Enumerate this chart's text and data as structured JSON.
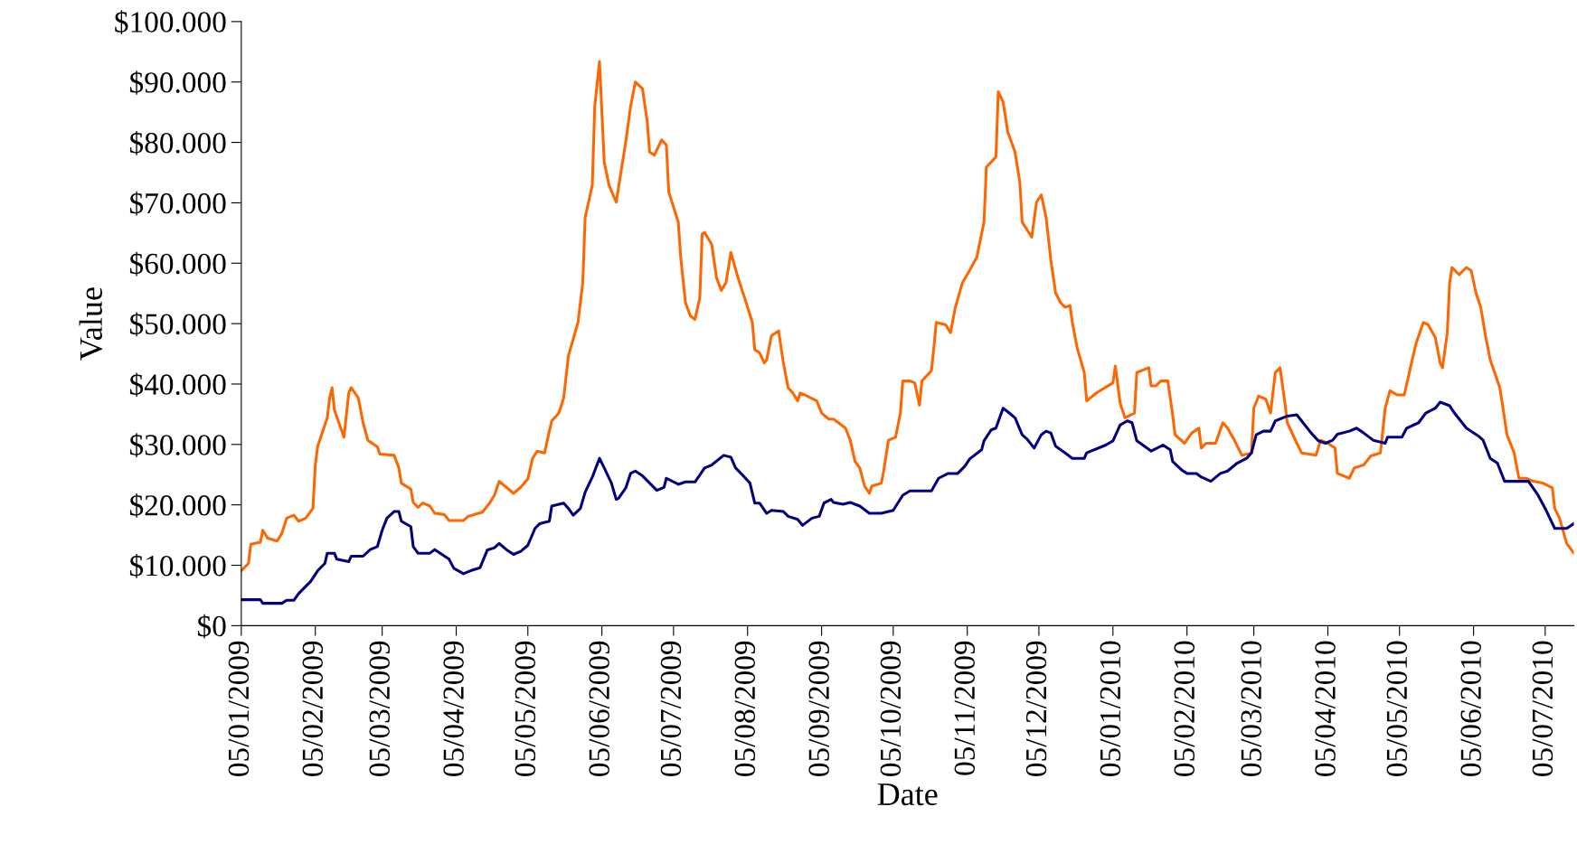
{
  "chart_data": {
    "type": "line",
    "xlabel": "Date",
    "ylabel": "Value",
    "grid": false,
    "legend": false,
    "marker": "none",
    "line_style": "solid",
    "xlim": [
      "2009-01-05",
      "2010-07-17"
    ],
    "xticks": [
      {
        "value": "2009-01-05",
        "label": "05/01/2009"
      },
      {
        "value": "2009-02-05",
        "label": "05/02/2009"
      },
      {
        "value": "2009-03-05",
        "label": "05/03/2009"
      },
      {
        "value": "2009-04-05",
        "label": "05/04/2009"
      },
      {
        "value": "2009-05-05",
        "label": "05/05/2009"
      },
      {
        "value": "2009-06-05",
        "label": "05/06/2009"
      },
      {
        "value": "2009-07-05",
        "label": "05/07/2009"
      },
      {
        "value": "2009-08-05",
        "label": "05/08/2009"
      },
      {
        "value": "2009-09-05",
        "label": "05/09/2009"
      },
      {
        "value": "2009-10-05",
        "label": "05/10/2009"
      },
      {
        "value": "2009-11-05",
        "label": "05/11/2009"
      },
      {
        "value": "2009-12-05",
        "label": "05/12/2009"
      },
      {
        "value": "2010-01-05",
        "label": "05/01/2010"
      },
      {
        "value": "2010-02-05",
        "label": "05/02/2010"
      },
      {
        "value": "2010-03-05",
        "label": "05/03/2010"
      },
      {
        "value": "2010-04-05",
        "label": "05/04/2010"
      },
      {
        "value": "2010-05-05",
        "label": "05/05/2010"
      },
      {
        "value": "2010-06-05",
        "label": "05/06/2010"
      },
      {
        "value": "2010-07-05",
        "label": "05/07/2010"
      }
    ],
    "ylim": [
      0,
      100000
    ],
    "yticks": [
      {
        "value": 0,
        "label": "$0"
      },
      {
        "value": 10000,
        "label": "$10.000"
      },
      {
        "value": 20000,
        "label": "$20.000"
      },
      {
        "value": 30000,
        "label": "$30.000"
      },
      {
        "value": 40000,
        "label": "$40.000"
      },
      {
        "value": 50000,
        "label": "$50.000"
      },
      {
        "value": 60000,
        "label": "$60.000"
      },
      {
        "value": 70000,
        "label": "$70.000"
      },
      {
        "value": 80000,
        "label": "$80.000"
      },
      {
        "value": 90000,
        "label": "$90.000"
      },
      {
        "value": 100000,
        "label": "$100.000"
      }
    ],
    "series": [
      {
        "color": "#ff6600",
        "x": [
          "2009-01-05",
          "2009-01-08",
          "2009-01-09",
          "2009-01-13",
          "2009-01-14",
          "2009-01-16",
          "2009-01-20",
          "2009-01-22",
          "2009-01-24",
          "2009-01-27",
          "2009-01-29",
          "2009-02-01",
          "2009-02-04",
          "2009-02-05",
          "2009-02-06",
          "2009-02-10",
          "2009-02-11",
          "2009-02-12",
          "2009-02-13",
          "2009-02-17",
          "2009-02-19",
          "2009-02-20",
          "2009-02-23",
          "2009-02-25",
          "2009-02-27",
          "2009-03-03",
          "2009-03-04",
          "2009-03-10",
          "2009-03-12",
          "2009-03-13",
          "2009-03-17",
          "2009-03-18",
          "2009-03-20",
          "2009-03-22",
          "2009-03-25",
          "2009-03-27",
          "2009-03-31",
          "2009-04-02",
          "2009-04-08",
          "2009-04-10",
          "2009-04-16",
          "2009-04-19",
          "2009-04-21",
          "2009-04-23",
          "2009-04-26",
          "2009-04-29",
          "2009-05-02",
          "2009-05-05",
          "2009-05-07",
          "2009-05-09",
          "2009-05-12",
          "2009-05-14",
          "2009-05-15",
          "2009-05-18",
          "2009-05-20",
          "2009-05-22",
          "2009-05-26",
          "2009-05-28",
          "2009-05-29",
          "2009-06-01",
          "2009-06-02",
          "2009-06-04",
          "2009-06-06",
          "2009-06-08",
          "2009-06-11",
          "2009-06-12",
          "2009-06-15",
          "2009-06-17",
          "2009-06-19",
          "2009-06-22",
          "2009-06-24",
          "2009-06-25",
          "2009-06-27",
          "2009-06-30",
          "2009-07-02",
          "2009-07-03",
          "2009-07-07",
          "2009-07-08",
          "2009-07-10",
          "2009-07-12",
          "2009-07-14",
          "2009-07-16",
          "2009-07-17",
          "2009-07-18",
          "2009-07-21",
          "2009-07-23",
          "2009-07-25",
          "2009-07-27",
          "2009-07-29",
          "2009-08-01",
          "2009-08-04",
          "2009-08-07",
          "2009-08-08",
          "2009-08-10",
          "2009-08-12",
          "2009-08-13",
          "2009-08-15",
          "2009-08-18",
          "2009-08-20",
          "2009-08-22",
          "2009-08-24",
          "2009-08-26",
          "2009-08-27",
          "2009-08-29",
          "2009-09-03",
          "2009-09-05",
          "2009-09-08",
          "2009-09-10",
          "2009-09-12",
          "2009-09-15",
          "2009-09-17",
          "2009-09-19",
          "2009-09-21",
          "2009-09-23",
          "2009-09-25",
          "2009-09-26",
          "2009-09-30",
          "2009-10-01",
          "2009-10-03",
          "2009-10-06",
          "2009-10-08",
          "2009-10-09",
          "2009-10-12",
          "2009-10-14",
          "2009-10-16",
          "2009-10-17",
          "2009-10-21",
          "2009-10-22",
          "2009-10-23",
          "2009-10-27",
          "2009-10-29",
          "2009-10-31",
          "2009-11-03",
          "2009-11-06",
          "2009-11-09",
          "2009-11-12",
          "2009-11-13",
          "2009-11-17",
          "2009-11-18",
          "2009-11-20",
          "2009-11-22",
          "2009-11-25",
          "2009-11-27",
          "2009-11-28",
          "2009-12-02",
          "2009-12-04",
          "2009-12-06",
          "2009-12-08",
          "2009-12-10",
          "2009-12-12",
          "2009-12-14",
          "2009-12-16",
          "2009-12-18",
          "2009-12-19",
          "2009-12-21",
          "2009-12-24",
          "2009-12-25",
          "2009-12-29",
          "2010-01-05",
          "2010-01-06",
          "2010-01-08",
          "2010-01-10",
          "2010-01-14",
          "2010-01-15",
          "2010-01-20",
          "2010-01-21",
          "2010-01-23",
          "2010-01-25",
          "2010-01-28",
          "2010-01-30",
          "2010-01-31",
          "2010-02-04",
          "2010-02-07",
          "2010-02-10",
          "2010-02-11",
          "2010-02-13",
          "2010-02-17",
          "2010-02-20",
          "2010-02-22",
          "2010-02-25",
          "2010-02-28",
          "2010-03-04",
          "2010-03-05",
          "2010-03-07",
          "2010-03-10",
          "2010-03-12",
          "2010-03-14",
          "2010-03-16",
          "2010-03-18",
          "2010-03-19",
          "2010-03-23",
          "2010-03-25",
          "2010-03-31",
          "2010-04-02",
          "2010-04-05",
          "2010-04-08",
          "2010-04-09",
          "2010-04-14",
          "2010-04-16",
          "2010-04-20",
          "2010-04-23",
          "2010-04-27",
          "2010-04-29",
          "2010-05-01",
          "2010-05-04",
          "2010-05-07",
          "2010-05-10",
          "2010-05-12",
          "2010-05-15",
          "2010-05-17",
          "2010-05-20",
          "2010-05-22",
          "2010-05-23",
          "2010-05-25",
          "2010-05-26",
          "2010-05-27",
          "2010-05-30",
          "2010-06-02",
          "2010-06-04",
          "2010-06-06",
          "2010-06-08",
          "2010-06-10",
          "2010-06-12",
          "2010-06-16",
          "2010-06-17",
          "2010-06-19",
          "2010-06-22",
          "2010-06-24",
          "2010-06-27",
          "2010-06-30",
          "2010-07-04",
          "2010-07-08",
          "2010-07-09",
          "2010-07-11",
          "2010-07-14",
          "2010-07-17"
        ],
        "values": [
          9100,
          10300,
          13500,
          13800,
          15800,
          14500,
          14000,
          15300,
          17800,
          18300,
          17300,
          17800,
          19400,
          26600,
          29700,
          34400,
          37700,
          39400,
          35700,
          31200,
          38500,
          39400,
          37700,
          33600,
          30700,
          29600,
          28400,
          28200,
          26100,
          23600,
          22600,
          20400,
          19600,
          20300,
          19800,
          18600,
          18400,
          17400,
          17400,
          18100,
          18800,
          20300,
          21600,
          23900,
          22900,
          21900,
          22900,
          24300,
          27700,
          28900,
          28600,
          32200,
          33900,
          35200,
          37700,
          44700,
          50200,
          56800,
          67600,
          72900,
          85900,
          93400,
          76700,
          72900,
          70100,
          72600,
          80100,
          85900,
          90000,
          88900,
          83400,
          78400,
          77900,
          80400,
          79600,
          71800,
          66800,
          61000,
          53500,
          51300,
          50700,
          54300,
          64800,
          65100,
          63100,
          57600,
          55500,
          56800,
          61800,
          57600,
          54000,
          50200,
          45700,
          45200,
          43500,
          44000,
          48000,
          48800,
          43500,
          39400,
          38500,
          37200,
          38500,
          38200,
          37200,
          35200,
          34200,
          34200,
          33600,
          32700,
          30700,
          27200,
          26100,
          23100,
          21900,
          23100,
          23600,
          25600,
          30700,
          31200,
          35200,
          40500,
          40500,
          40200,
          36500,
          40500,
          42200,
          46000,
          50200,
          49800,
          48500,
          52700,
          56800,
          58800,
          61000,
          66800,
          75900,
          77600,
          88400,
          86700,
          81700,
          78400,
          73400,
          66800,
          64300,
          70100,
          71300,
          67600,
          60500,
          55100,
          53500,
          52700,
          53000,
          50200,
          46000,
          41900,
          37200,
          38500,
          40200,
          43000,
          36900,
          34400,
          35200,
          41900,
          42700,
          39700,
          39700,
          40500,
          40500,
          34900,
          31600,
          30200,
          31900,
          32700,
          29400,
          30200,
          30200,
          33600,
          32700,
          30600,
          28200,
          28600,
          36000,
          38000,
          37500,
          35200,
          41900,
          42700,
          36900,
          33600,
          30200,
          28600,
          28200,
          30700,
          30200,
          29400,
          25200,
          24400,
          26100,
          26600,
          28100,
          28600,
          36000,
          38900,
          38200,
          38200,
          43500,
          46800,
          50200,
          49800,
          47700,
          43500,
          42700,
          48500,
          56800,
          59300,
          58100,
          59300,
          58800,
          55100,
          52700,
          48000,
          44000,
          39400,
          36900,
          31600,
          28600,
          24400,
          24400,
          23900,
          23600,
          22800,
          19400,
          17800,
          13600,
          12000
        ]
      },
      {
        "color": "#000080",
        "x": [
          "2009-01-05",
          "2009-01-13",
          "2009-01-14",
          "2009-01-22",
          "2009-01-24",
          "2009-01-27",
          "2009-01-29",
          "2009-02-01",
          "2009-02-03",
          "2009-02-06",
          "2009-02-09",
          "2009-02-10",
          "2009-02-13",
          "2009-02-14",
          "2009-02-19",
          "2009-02-20",
          "2009-02-25",
          "2009-02-28",
          "2009-03-03",
          "2009-03-05",
          "2009-03-07",
          "2009-03-10",
          "2009-03-12",
          "2009-03-13",
          "2009-03-17",
          "2009-03-18",
          "2009-03-20",
          "2009-03-25",
          "2009-03-27",
          "2009-03-30",
          "2009-04-02",
          "2009-04-04",
          "2009-04-08",
          "2009-04-11",
          "2009-04-15",
          "2009-04-18",
          "2009-04-21",
          "2009-04-23",
          "2009-04-26",
          "2009-04-29",
          "2009-05-02",
          "2009-05-05",
          "2009-05-08",
          "2009-05-10",
          "2009-05-14",
          "2009-05-15",
          "2009-05-20",
          "2009-05-22",
          "2009-05-24",
          "2009-05-27",
          "2009-05-29",
          "2009-06-01",
          "2009-06-04",
          "2009-06-06",
          "2009-06-09",
          "2009-06-11",
          "2009-06-12",
          "2009-06-15",
          "2009-06-17",
          "2009-06-19",
          "2009-06-22",
          "2009-06-25",
          "2009-06-28",
          "2009-07-01",
          "2009-07-02",
          "2009-07-07",
          "2009-07-10",
          "2009-07-14",
          "2009-07-18",
          "2009-07-21",
          "2009-07-26",
          "2009-07-29",
          "2009-07-31",
          "2009-08-03",
          "2009-08-06",
          "2009-08-08",
          "2009-08-10",
          "2009-08-13",
          "2009-08-15",
          "2009-08-20",
          "2009-08-22",
          "2009-08-26",
          "2009-08-28",
          "2009-09-01",
          "2009-09-04",
          "2009-09-06",
          "2009-09-09",
          "2009-09-10",
          "2009-09-14",
          "2009-09-17",
          "2009-09-21",
          "2009-09-25",
          "2009-09-30",
          "2009-10-05",
          "2009-10-09",
          "2009-10-12",
          "2009-10-21",
          "2009-10-24",
          "2009-10-28",
          "2009-11-01",
          "2009-11-04",
          "2009-11-06",
          "2009-11-11",
          "2009-11-12",
          "2009-11-15",
          "2009-11-17",
          "2009-11-20",
          "2009-11-22",
          "2009-11-25",
          "2009-11-28",
          "2009-11-30",
          "2009-12-03",
          "2009-12-06",
          "2009-12-08",
          "2009-12-10",
          "2009-12-12",
          "2009-12-16",
          "2009-12-19",
          "2009-12-24",
          "2009-12-25",
          "2010-01-02",
          "2010-01-05",
          "2010-01-08",
          "2010-01-11",
          "2010-01-13",
          "2010-01-15",
          "2010-01-21",
          "2010-01-26",
          "2010-01-29",
          "2010-01-30",
          "2010-02-03",
          "2010-02-05",
          "2010-02-09",
          "2010-02-11",
          "2010-02-15",
          "2010-02-19",
          "2010-02-22",
          "2010-02-26",
          "2010-03-02",
          "2010-03-04",
          "2010-03-06",
          "2010-03-09",
          "2010-03-12",
          "2010-03-14",
          "2010-03-19",
          "2010-03-23",
          "2010-03-25",
          "2010-03-29",
          "2010-04-01",
          "2010-04-04",
          "2010-04-07",
          "2010-04-09",
          "2010-04-14",
          "2010-04-17",
          "2010-04-20",
          "2010-04-24",
          "2010-04-29",
          "2010-04-30",
          "2010-05-06",
          "2010-05-08",
          "2010-05-13",
          "2010-05-16",
          "2010-05-20",
          "2010-05-22",
          "2010-05-26",
          "2010-05-28",
          "2010-06-02",
          "2010-06-07",
          "2010-06-09",
          "2010-06-12",
          "2010-06-15",
          "2010-06-18",
          "2010-06-23",
          "2010-06-28",
          "2010-07-02",
          "2010-07-05",
          "2010-07-09",
          "2010-07-14",
          "2010-07-17"
        ],
        "values": [
          4300,
          4300,
          3700,
          3700,
          4200,
          4200,
          5300,
          6500,
          7300,
          9100,
          10300,
          12000,
          12000,
          11000,
          10600,
          11500,
          11500,
          12600,
          13100,
          15800,
          17800,
          18900,
          18900,
          17300,
          16400,
          13100,
          12000,
          12000,
          12600,
          11800,
          11000,
          9500,
          8600,
          9100,
          9600,
          12500,
          12900,
          13600,
          12600,
          11800,
          12300,
          13300,
          16100,
          16900,
          17300,
          19800,
          20300,
          19400,
          18300,
          19400,
          22100,
          24600,
          27700,
          26100,
          23600,
          20900,
          21100,
          22800,
          25200,
          25600,
          24800,
          23600,
          22400,
          22900,
          24400,
          23400,
          23800,
          23800,
          26100,
          26600,
          28200,
          27900,
          26100,
          24900,
          23600,
          20300,
          20300,
          18600,
          19100,
          18900,
          18100,
          17600,
          16600,
          17800,
          18100,
          20300,
          20900,
          20400,
          20100,
          20400,
          19800,
          18600,
          18600,
          19100,
          21600,
          22300,
          22300,
          24400,
          25200,
          25200,
          26400,
          27600,
          29100,
          30600,
          32400,
          32700,
          36000,
          35400,
          34400,
          31600,
          30900,
          29400,
          31600,
          32200,
          31900,
          29700,
          28600,
          27700,
          27700,
          28600,
          29900,
          30600,
          33200,
          33900,
          33600,
          30600,
          28900,
          29900,
          29100,
          27200,
          25700,
          25200,
          25200,
          24600,
          23900,
          25200,
          25600,
          26900,
          27700,
          28600,
          31600,
          32200,
          32200,
          33900,
          34700,
          34900,
          33900,
          31900,
          30600,
          30200,
          30700,
          31700,
          32200,
          32700,
          31900,
          30700,
          30200,
          31200,
          31200,
          32700,
          33600,
          35200,
          36000,
          37000,
          36400,
          35200,
          32700,
          31400,
          30700,
          27700,
          26900,
          23900,
          23900,
          23900,
          21600,
          19400,
          16100,
          16100,
          16900
        ]
      }
    ]
  }
}
